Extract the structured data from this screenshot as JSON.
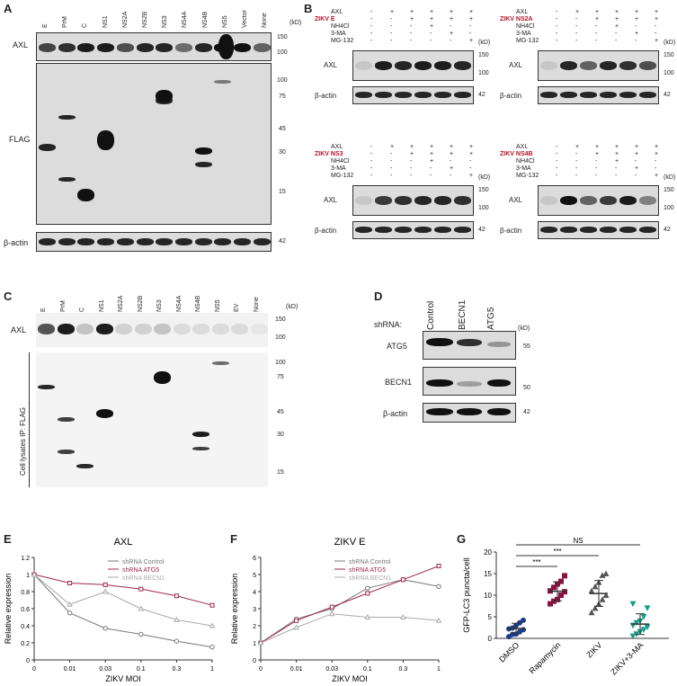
{
  "panelA": {
    "label": "A",
    "lanes": [
      "E",
      "PrM",
      "C",
      "NS1",
      "NS2A",
      "NS2B",
      "NS3",
      "NS4A",
      "NS4B",
      "NS5",
      "Vector",
      "None"
    ],
    "rows": [
      "AXL",
      "FLAG",
      "β-actin"
    ],
    "kd": "(kD)",
    "axl_marks": [
      "150",
      "100"
    ],
    "flag_marks": [
      "100",
      "75",
      "45",
      "30",
      "15"
    ],
    "actin_mark": "42"
  },
  "panelB": {
    "label": "B",
    "treat_rows": [
      "AXL",
      "NH4Cl",
      "3-MA",
      "MG-132"
    ],
    "kd": "(kD)",
    "marks150": "150",
    "marks100": "100",
    "mark42": "42",
    "rowAXL": "AXL",
    "rowActin": "β-actin",
    "blots": [
      {
        "zikv": "ZIKV E",
        "signs": [
          [
            "-",
            "+",
            "+",
            "+",
            "+",
            "+"
          ],
          [
            "-",
            "-",
            "+",
            "+",
            "+",
            "+"
          ],
          [
            "-",
            "-",
            "-",
            "+",
            "-",
            "-"
          ],
          [
            "-",
            "-",
            "-",
            "-",
            "+",
            "-"
          ],
          [
            "-",
            "-",
            "-",
            "-",
            "-",
            "+"
          ]
        ]
      },
      {
        "zikv": "ZIKV NS2A",
        "signs": [
          [
            "-",
            "+",
            "+",
            "+",
            "+",
            "+"
          ],
          [
            "-",
            "-",
            "+",
            "+",
            "+",
            "+"
          ],
          [
            "-",
            "-",
            "-",
            "+",
            "-",
            "-"
          ],
          [
            "-",
            "-",
            "-",
            "-",
            "+",
            "-"
          ],
          [
            "-",
            "-",
            "-",
            "-",
            "-",
            "+"
          ]
        ]
      },
      {
        "zikv": "ZIKV NS3",
        "signs": [
          [
            "-",
            "+",
            "+",
            "+",
            "+",
            "+"
          ],
          [
            "-",
            "-",
            "+",
            "+",
            "+",
            "+"
          ],
          [
            "-",
            "-",
            "-",
            "+",
            "-",
            "-"
          ],
          [
            "-",
            "-",
            "-",
            "-",
            "+",
            "-"
          ],
          [
            "-",
            "-",
            "-",
            "-",
            "-",
            "+"
          ]
        ]
      },
      {
        "zikv": "ZIKV NS4B",
        "signs": [
          [
            "-",
            "+",
            "+",
            "+",
            "+",
            "+"
          ],
          [
            "-",
            "-",
            "+",
            "+",
            "+",
            "+"
          ],
          [
            "-",
            "-",
            "-",
            "+",
            "-",
            "-"
          ],
          [
            "-",
            "-",
            "-",
            "-",
            "+",
            "-"
          ],
          [
            "-",
            "-",
            "-",
            "-",
            "-",
            "+"
          ]
        ]
      }
    ]
  },
  "panelC": {
    "label": "C",
    "lanes": [
      "E",
      "PrM",
      "C",
      "NS1",
      "NS2A",
      "NS2B",
      "NS3",
      "NS4A",
      "NS4B",
      "NS5",
      "EV",
      "None"
    ],
    "row_axl": "AXL",
    "side_label": "Cell lysates IP: FLAG",
    "kd": "(kD)",
    "axl_marks": [
      "150",
      "100"
    ],
    "ip_marks": [
      "100",
      "75",
      "45",
      "30",
      "15"
    ]
  },
  "panelD": {
    "label": "D",
    "shrna": "shRNA:",
    "lanes": [
      "Control",
      "BECN1",
      "ATG5"
    ],
    "rows": [
      "ATG5",
      "BECN1",
      "β-actin"
    ],
    "kd": "(kD)",
    "marks": [
      "55",
      "50",
      "42"
    ]
  },
  "panelE": {
    "label": "E"
  },
  "panelF": {
    "label": "F"
  },
  "panelG": {
    "label": "G"
  },
  "chart_data": [
    {
      "type": "line",
      "title": "AXL",
      "xlabel": "ZIKV   MOI",
      "ylabel": "Relative expression",
      "categories": [
        "0",
        "0.01",
        "0.03",
        "0.1",
        "0.3",
        "1"
      ],
      "ylim": [
        0,
        1.2
      ],
      "yticks": [
        "0",
        "0.2",
        "0.4",
        "0.6",
        "0.8",
        "1",
        "1.2"
      ],
      "series": [
        {
          "name": "shRNA Control",
          "color": "#777777",
          "values": [
            1.0,
            0.55,
            0.37,
            0.3,
            0.22,
            0.15
          ]
        },
        {
          "name": "shRNA ATG5",
          "color": "#a0284a",
          "values": [
            1.0,
            0.9,
            0.88,
            0.83,
            0.75,
            0.64
          ]
        },
        {
          "name": "shRNA BECN1",
          "color": "#aaaaaa",
          "values": [
            1.0,
            0.65,
            0.8,
            0.6,
            0.47,
            0.4
          ]
        }
      ]
    },
    {
      "type": "line",
      "title": "ZIKV E",
      "xlabel": "ZIKV   MOI",
      "ylabel": "Relative expression",
      "categories": [
        "0",
        "0.01",
        "0.03",
        "0.1",
        "0.3",
        "1"
      ],
      "ylim": [
        0,
        6
      ],
      "yticks": [
        "0",
        "1",
        "2",
        "3",
        "4",
        "5",
        "6"
      ],
      "series": [
        {
          "name": "shRNA Control",
          "color": "#777777",
          "values": [
            1.0,
            2.4,
            3.0,
            4.2,
            4.7,
            4.3
          ]
        },
        {
          "name": "shRNA ATG5",
          "color": "#a0284a",
          "values": [
            1.0,
            2.3,
            3.1,
            3.9,
            4.7,
            5.5
          ]
        },
        {
          "name": "shRNA BECN1",
          "color": "#aaaaaa",
          "values": [
            1.0,
            1.9,
            2.7,
            2.5,
            2.5,
            2.3
          ]
        }
      ]
    },
    {
      "type": "scatter",
      "ylabel": "GFP-LC3 puncta/cell",
      "ylim": [
        0,
        20
      ],
      "yticks": [
        "0",
        "5",
        "10",
        "15",
        "20"
      ],
      "categories": [
        "DMSO",
        "Rapamycin",
        "ZIKV",
        "ZIKV+3-MA"
      ],
      "groups": [
        {
          "name": "DMSO",
          "color": "#1f3a8a",
          "marker": "circle",
          "mean": 2.3,
          "sd": 1.2,
          "values": [
            0.4,
            0.9,
            1.0,
            1.5,
            2.0,
            2.2,
            2.4,
            3.0,
            3.6,
            4.2
          ]
        },
        {
          "name": "Rapamycin",
          "color": "#8a1040",
          "marker": "square",
          "mean": 10.9,
          "sd": 2.2,
          "values": [
            8.0,
            8.6,
            9.0,
            10.0,
            10.8,
            11.0,
            11.8,
            12.6,
            13.2,
            14.5
          ]
        },
        {
          "name": "ZIKV",
          "color": "#555555",
          "marker": "triangle",
          "mean": 10.4,
          "sd": 3.0,
          "values": [
            6.0,
            7.0,
            8.0,
            9.0,
            10.0,
            11.0,
            12.0,
            13.0,
            14.6,
            15.0
          ]
        },
        {
          "name": "ZIKV+3-MA",
          "color": "#1a9c8c",
          "marker": "tri-down",
          "mean": 3.3,
          "sd": 2.4,
          "values": [
            0.5,
            1.0,
            1.5,
            2.0,
            2.6,
            3.0,
            3.6,
            4.0,
            5.0,
            7.0,
            8.0
          ]
        }
      ],
      "sig": [
        {
          "label": "NS",
          "from": 0,
          "to": 3
        },
        {
          "label": "***",
          "from": 0,
          "to": 2
        },
        {
          "label": "***",
          "from": 0,
          "to": 1
        }
      ]
    }
  ]
}
